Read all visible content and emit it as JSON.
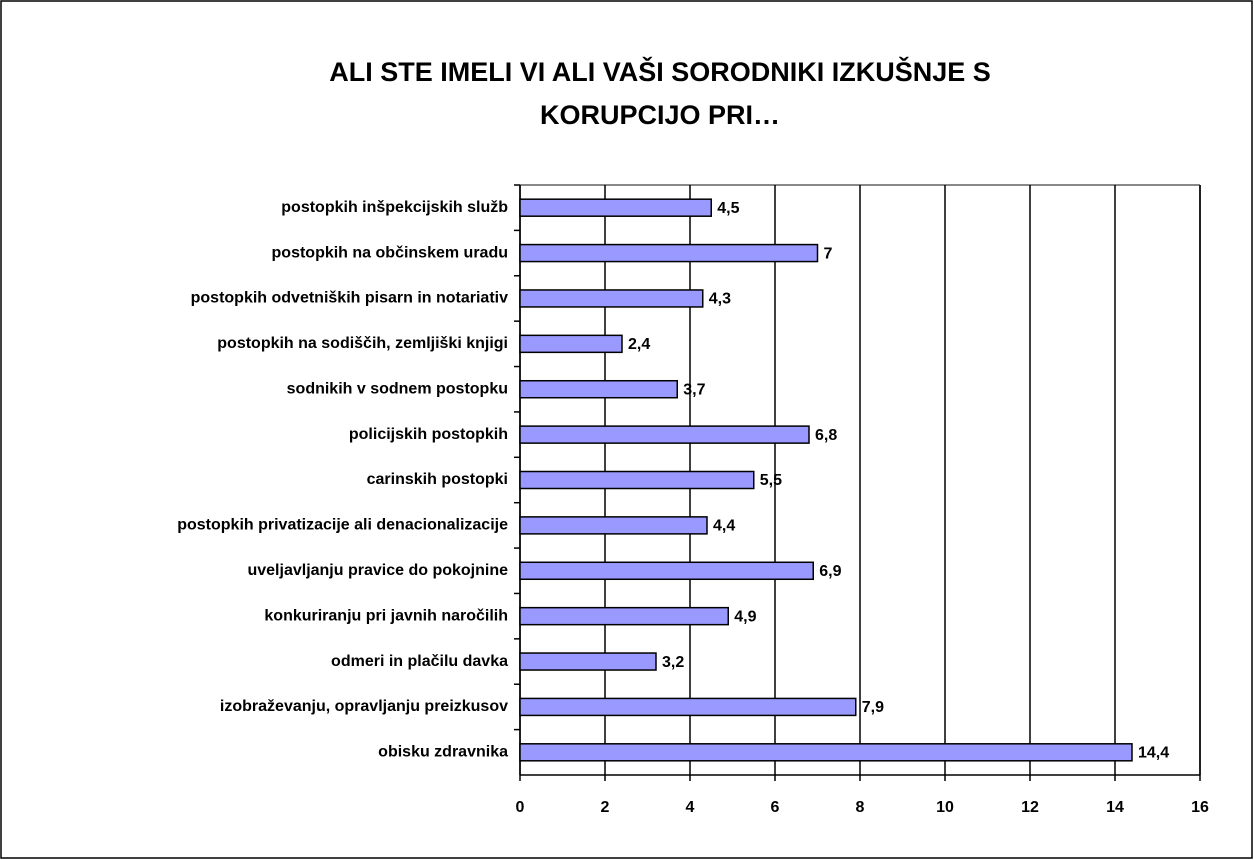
{
  "chart_data": {
    "type": "barh",
    "title": [
      "ALI STE IMELI VI ALI VAŠI SORODNIKI IZKUŠNJE S",
      "KORUPCIJO PRI…"
    ],
    "categories": [
      "postopkih inšpekcijskih služb",
      "postopkih na občinskem uradu",
      "postopkih odvetniških pisarn in notariativ",
      "postopkih na sodiščih, zemljiški knjigi",
      "sodnikih v sodnem postopku",
      "policijskih postopkih",
      "carinskih postopki",
      "postopkih privatizacije ali denacionalizacije",
      "uveljavljanju pravice do pokojnine",
      "konkuriranju pri javnih naročilih",
      "odmeri in plačilu davka",
      "izobraževanju, opravljanju preizkusov",
      "obisku zdravnika"
    ],
    "values": [
      4.5,
      7,
      4.3,
      2.4,
      3.7,
      6.8,
      5.5,
      4.4,
      6.9,
      4.9,
      3.2,
      7.9,
      14.4
    ],
    "value_labels": [
      "4,5",
      "7",
      "4,3",
      "2,4",
      "3,7",
      "6,8",
      "5,5",
      "4,4",
      "6,9",
      "4,9",
      "3,2",
      "7,9",
      "14,4"
    ],
    "color": "#9999ff",
    "xlim": [
      0,
      16
    ],
    "xticks": [
      0,
      2,
      4,
      6,
      8,
      10,
      12,
      14,
      16
    ],
    "grid": true
  }
}
